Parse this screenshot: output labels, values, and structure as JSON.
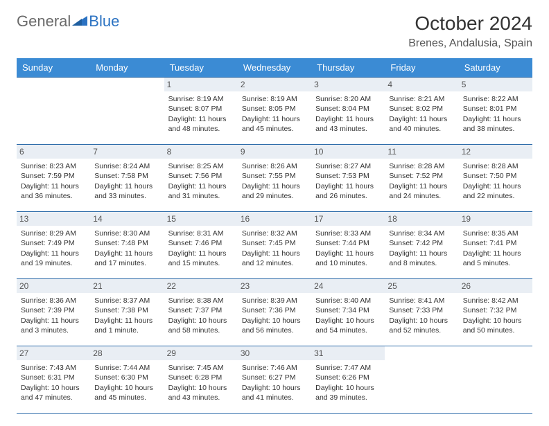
{
  "brand": {
    "general": "General",
    "blue": "Blue",
    "general_color": "#6a6a6a",
    "blue_color": "#2b72c2",
    "fontsize": 22
  },
  "header": {
    "title": "October 2024",
    "title_fontsize": 28,
    "location": "Brenes, Andalusia, Spain",
    "location_fontsize": 16
  },
  "styles": {
    "header_row_bg": "#3b8bd4",
    "header_row_fg": "#ffffff",
    "daynum_bg": "#e9eef4",
    "daynum_fg": "#555555",
    "row_border": "#2b6aa8",
    "body_fontsize": 10.5,
    "page_bg": "#ffffff"
  },
  "day_names": [
    "Sunday",
    "Monday",
    "Tuesday",
    "Wednesday",
    "Thursday",
    "Friday",
    "Saturday"
  ],
  "weeks": [
    [
      {
        "empty": true
      },
      {
        "empty": true
      },
      {
        "num": "1",
        "sunrise": "Sunrise: 8:19 AM",
        "sunset": "Sunset: 8:07 PM",
        "daylight": "Daylight: 11 hours and 48 minutes."
      },
      {
        "num": "2",
        "sunrise": "Sunrise: 8:19 AM",
        "sunset": "Sunset: 8:05 PM",
        "daylight": "Daylight: 11 hours and 45 minutes."
      },
      {
        "num": "3",
        "sunrise": "Sunrise: 8:20 AM",
        "sunset": "Sunset: 8:04 PM",
        "daylight": "Daylight: 11 hours and 43 minutes."
      },
      {
        "num": "4",
        "sunrise": "Sunrise: 8:21 AM",
        "sunset": "Sunset: 8:02 PM",
        "daylight": "Daylight: 11 hours and 40 minutes."
      },
      {
        "num": "5",
        "sunrise": "Sunrise: 8:22 AM",
        "sunset": "Sunset: 8:01 PM",
        "daylight": "Daylight: 11 hours and 38 minutes."
      }
    ],
    [
      {
        "num": "6",
        "sunrise": "Sunrise: 8:23 AM",
        "sunset": "Sunset: 7:59 PM",
        "daylight": "Daylight: 11 hours and 36 minutes."
      },
      {
        "num": "7",
        "sunrise": "Sunrise: 8:24 AM",
        "sunset": "Sunset: 7:58 PM",
        "daylight": "Daylight: 11 hours and 33 minutes."
      },
      {
        "num": "8",
        "sunrise": "Sunrise: 8:25 AM",
        "sunset": "Sunset: 7:56 PM",
        "daylight": "Daylight: 11 hours and 31 minutes."
      },
      {
        "num": "9",
        "sunrise": "Sunrise: 8:26 AM",
        "sunset": "Sunset: 7:55 PM",
        "daylight": "Daylight: 11 hours and 29 minutes."
      },
      {
        "num": "10",
        "sunrise": "Sunrise: 8:27 AM",
        "sunset": "Sunset: 7:53 PM",
        "daylight": "Daylight: 11 hours and 26 minutes."
      },
      {
        "num": "11",
        "sunrise": "Sunrise: 8:28 AM",
        "sunset": "Sunset: 7:52 PM",
        "daylight": "Daylight: 11 hours and 24 minutes."
      },
      {
        "num": "12",
        "sunrise": "Sunrise: 8:28 AM",
        "sunset": "Sunset: 7:50 PM",
        "daylight": "Daylight: 11 hours and 22 minutes."
      }
    ],
    [
      {
        "num": "13",
        "sunrise": "Sunrise: 8:29 AM",
        "sunset": "Sunset: 7:49 PM",
        "daylight": "Daylight: 11 hours and 19 minutes."
      },
      {
        "num": "14",
        "sunrise": "Sunrise: 8:30 AM",
        "sunset": "Sunset: 7:48 PM",
        "daylight": "Daylight: 11 hours and 17 minutes."
      },
      {
        "num": "15",
        "sunrise": "Sunrise: 8:31 AM",
        "sunset": "Sunset: 7:46 PM",
        "daylight": "Daylight: 11 hours and 15 minutes."
      },
      {
        "num": "16",
        "sunrise": "Sunrise: 8:32 AM",
        "sunset": "Sunset: 7:45 PM",
        "daylight": "Daylight: 11 hours and 12 minutes."
      },
      {
        "num": "17",
        "sunrise": "Sunrise: 8:33 AM",
        "sunset": "Sunset: 7:44 PM",
        "daylight": "Daylight: 11 hours and 10 minutes."
      },
      {
        "num": "18",
        "sunrise": "Sunrise: 8:34 AM",
        "sunset": "Sunset: 7:42 PM",
        "daylight": "Daylight: 11 hours and 8 minutes."
      },
      {
        "num": "19",
        "sunrise": "Sunrise: 8:35 AM",
        "sunset": "Sunset: 7:41 PM",
        "daylight": "Daylight: 11 hours and 5 minutes."
      }
    ],
    [
      {
        "num": "20",
        "sunrise": "Sunrise: 8:36 AM",
        "sunset": "Sunset: 7:39 PM",
        "daylight": "Daylight: 11 hours and 3 minutes."
      },
      {
        "num": "21",
        "sunrise": "Sunrise: 8:37 AM",
        "sunset": "Sunset: 7:38 PM",
        "daylight": "Daylight: 11 hours and 1 minute."
      },
      {
        "num": "22",
        "sunrise": "Sunrise: 8:38 AM",
        "sunset": "Sunset: 7:37 PM",
        "daylight": "Daylight: 10 hours and 58 minutes."
      },
      {
        "num": "23",
        "sunrise": "Sunrise: 8:39 AM",
        "sunset": "Sunset: 7:36 PM",
        "daylight": "Daylight: 10 hours and 56 minutes."
      },
      {
        "num": "24",
        "sunrise": "Sunrise: 8:40 AM",
        "sunset": "Sunset: 7:34 PM",
        "daylight": "Daylight: 10 hours and 54 minutes."
      },
      {
        "num": "25",
        "sunrise": "Sunrise: 8:41 AM",
        "sunset": "Sunset: 7:33 PM",
        "daylight": "Daylight: 10 hours and 52 minutes."
      },
      {
        "num": "26",
        "sunrise": "Sunrise: 8:42 AM",
        "sunset": "Sunset: 7:32 PM",
        "daylight": "Daylight: 10 hours and 50 minutes."
      }
    ],
    [
      {
        "num": "27",
        "sunrise": "Sunrise: 7:43 AM",
        "sunset": "Sunset: 6:31 PM",
        "daylight": "Daylight: 10 hours and 47 minutes."
      },
      {
        "num": "28",
        "sunrise": "Sunrise: 7:44 AM",
        "sunset": "Sunset: 6:30 PM",
        "daylight": "Daylight: 10 hours and 45 minutes."
      },
      {
        "num": "29",
        "sunrise": "Sunrise: 7:45 AM",
        "sunset": "Sunset: 6:28 PM",
        "daylight": "Daylight: 10 hours and 43 minutes."
      },
      {
        "num": "30",
        "sunrise": "Sunrise: 7:46 AM",
        "sunset": "Sunset: 6:27 PM",
        "daylight": "Daylight: 10 hours and 41 minutes."
      },
      {
        "num": "31",
        "sunrise": "Sunrise: 7:47 AM",
        "sunset": "Sunset: 6:26 PM",
        "daylight": "Daylight: 10 hours and 39 minutes."
      },
      {
        "empty": true
      },
      {
        "empty": true
      }
    ]
  ]
}
